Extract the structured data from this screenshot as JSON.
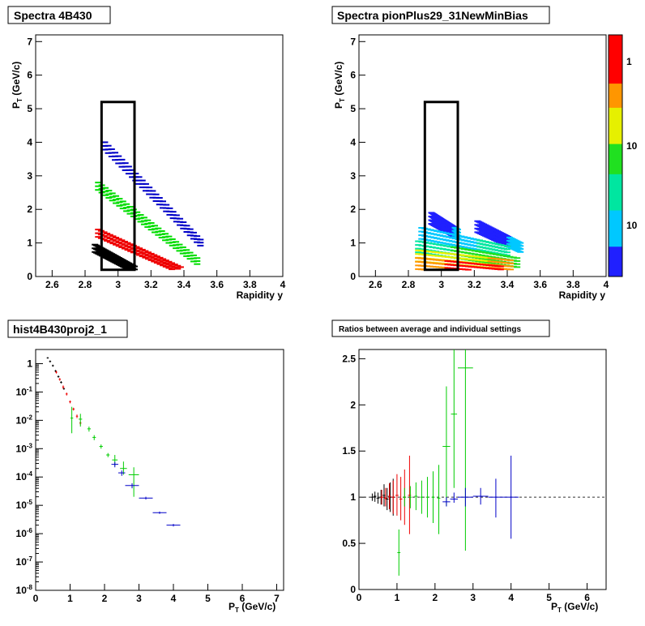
{
  "chart_data": [
    {
      "panel": "top-left",
      "type": "scatter",
      "title": "Spectra 4B430",
      "xlabel": "Rapidity y",
      "ylabel": "P_T (GeV/c)",
      "xlim": [
        2.5,
        4.0
      ],
      "ylim": [
        0,
        7.2
      ],
      "xticks": [
        "2.6",
        "2.8",
        "3",
        "3.2",
        "3.4",
        "3.6",
        "3.8",
        "4"
      ],
      "yticks": [
        "0",
        "1",
        "2",
        "3",
        "4",
        "5",
        "6",
        "7"
      ],
      "acceptance_box": {
        "y_range": [
          2.9,
          3.1
        ],
        "pt_range": [
          0.2,
          5.2
        ]
      },
      "bands": [
        {
          "color": "#0000c8",
          "y_start": 2.92,
          "y_end": 3.5,
          "pt_start": 4.0,
          "pt_end": 1.1
        },
        {
          "color": "#00dd00",
          "y_start": 2.88,
          "y_end": 3.48,
          "pt_start": 2.8,
          "pt_end": 0.55
        },
        {
          "color": "#ee0000",
          "y_start": 2.88,
          "y_end": 3.38,
          "pt_start": 1.4,
          "pt_end": 0.28
        },
        {
          "color": "#000000",
          "y_start": 2.86,
          "y_end": 3.1,
          "pt_start": 0.95,
          "pt_end": 0.3
        }
      ]
    },
    {
      "panel": "top-right",
      "type": "heatmap",
      "title": "Spectra pionPlus29_31NewMinBias",
      "xlabel": "Rapidity y",
      "ylabel": "P_T (GeV/c)",
      "xlim": [
        2.5,
        4.0
      ],
      "ylim": [
        0,
        7.2
      ],
      "xticks": [
        "2.6",
        "2.8",
        "3",
        "3.2",
        "3.4",
        "3.6",
        "3.8",
        "4"
      ],
      "yticks": [
        "0",
        "1",
        "2",
        "3",
        "4",
        "5",
        "6",
        "7"
      ],
      "acceptance_box": {
        "y_range": [
          2.9,
          3.1
        ],
        "pt_range": [
          0.2,
          5.2
        ]
      },
      "colorbar_labels": [
        "1",
        "10",
        "10"
      ],
      "bands": [
        {
          "level": 0.05,
          "y_start": 2.94,
          "y_end": 3.1,
          "pt_start": 1.9,
          "pt_end": 1.4
        },
        {
          "level": 0.08,
          "y_start": 3.22,
          "y_end": 3.48,
          "pt_start": 1.65,
          "pt_end": 1.0
        },
        {
          "level": 0.25,
          "y_start": 2.88,
          "y_end": 3.4,
          "pt_start": 1.45,
          "pt_end": 0.9
        },
        {
          "level": 0.45,
          "y_start": 2.86,
          "y_end": 3.46,
          "pt_start": 1.05,
          "pt_end": 0.55
        },
        {
          "level": 0.65,
          "y_start": 2.86,
          "y_end": 3.42,
          "pt_start": 0.78,
          "pt_end": 0.48
        },
        {
          "level": 0.85,
          "y_start": 2.86,
          "y_end": 3.36,
          "pt_start": 0.55,
          "pt_end": 0.3
        }
      ]
    },
    {
      "panel": "bottom-left",
      "type": "scatter",
      "title": "hist4B430proj2_1",
      "xlabel": "P_T (GeV/c)",
      "ylabel": "",
      "xlim": [
        0,
        7.2
      ],
      "ylim_log10": [
        -8,
        0.5
      ],
      "xticks": [
        "0",
        "1",
        "2",
        "3",
        "4",
        "5",
        "6",
        "7"
      ],
      "yticks": [
        {
          "base": "10",
          "exp": "-8"
        },
        {
          "base": "10",
          "exp": "-7"
        },
        {
          "base": "10",
          "exp": "-6"
        },
        {
          "base": "10",
          "exp": "-5"
        },
        {
          "base": "10",
          "exp": "-4"
        },
        {
          "base": "10",
          "exp": "-3"
        },
        {
          "base": "10",
          "exp": "-2"
        },
        {
          "base": "10",
          "exp": "-1"
        },
        {
          "base": "1",
          "exp": ""
        }
      ],
      "series": [
        {
          "color": "#000000",
          "points": [
            {
              "x": 0.35,
              "y": 1.6,
              "ex": 0.03,
              "lo": 1.5,
              "hi": 1.7
            },
            {
              "x": 0.42,
              "y": 1.2,
              "ex": 0.03,
              "lo": 1.1,
              "hi": 1.3
            },
            {
              "x": 0.5,
              "y": 0.85,
              "ex": 0.03,
              "lo": 0.78,
              "hi": 0.92
            },
            {
              "x": 0.58,
              "y": 0.55,
              "ex": 0.03,
              "lo": 0.5,
              "hi": 0.6
            },
            {
              "x": 0.66,
              "y": 0.35,
              "ex": 0.03,
              "lo": 0.32,
              "hi": 0.38
            },
            {
              "x": 0.74,
              "y": 0.22,
              "ex": 0.03,
              "lo": 0.2,
              "hi": 0.24
            },
            {
              "x": 0.82,
              "y": 0.13,
              "ex": 0.03,
              "lo": 0.12,
              "hi": 0.14
            }
          ]
        },
        {
          "color": "#ee0000",
          "points": [
            {
              "x": 0.6,
              "y": 0.5,
              "ex": 0.03,
              "lo": 0.45,
              "hi": 0.55
            },
            {
              "x": 0.7,
              "y": 0.28,
              "ex": 0.03,
              "lo": 0.25,
              "hi": 0.31
            },
            {
              "x": 0.8,
              "y": 0.15,
              "ex": 0.03,
              "lo": 0.13,
              "hi": 0.17
            },
            {
              "x": 0.9,
              "y": 0.085,
              "ex": 0.03,
              "lo": 0.075,
              "hi": 0.095
            },
            {
              "x": 1.0,
              "y": 0.045,
              "ex": 0.03,
              "lo": 0.04,
              "hi": 0.05
            },
            {
              "x": 1.1,
              "y": 0.025,
              "ex": 0.03,
              "lo": 0.022,
              "hi": 0.028
            },
            {
              "x": 1.2,
              "y": 0.014,
              "ex": 0.03,
              "lo": 0.012,
              "hi": 0.016
            },
            {
              "x": 1.3,
              "y": 0.008,
              "ex": 0.03,
              "lo": 0.007,
              "hi": 0.009
            }
          ]
        },
        {
          "color": "#00cc00",
          "points": [
            {
              "x": 1.05,
              "y": 0.012,
              "ex": 0.04,
              "lo": 0.0035,
              "hi": 0.03
            },
            {
              "x": 1.3,
              "y": 0.011,
              "ex": 0.05,
              "lo": 0.006,
              "hi": 0.017
            },
            {
              "x": 1.55,
              "y": 0.005,
              "ex": 0.05,
              "lo": 0.004,
              "hi": 0.006
            },
            {
              "x": 1.7,
              "y": 0.0025,
              "ex": 0.05,
              "lo": 0.002,
              "hi": 0.003
            },
            {
              "x": 1.9,
              "y": 0.0012,
              "ex": 0.05,
              "lo": 0.001,
              "hi": 0.0014
            },
            {
              "x": 2.1,
              "y": 0.0006,
              "ex": 0.05,
              "lo": 0.0005,
              "hi": 0.0007
            },
            {
              "x": 2.3,
              "y": 0.0004,
              "ex": 0.08,
              "lo": 0.00025,
              "hi": 0.0006
            },
            {
              "x": 2.55,
              "y": 0.0002,
              "ex": 0.1,
              "lo": 0.00012,
              "hi": 0.00035
            },
            {
              "x": 2.85,
              "y": 0.00012,
              "ex": 0.15,
              "lo": 2e-05,
              "hi": 0.00022
            }
          ]
        },
        {
          "color": "#0000c8",
          "points": [
            {
              "x": 2.3,
              "y": 0.00028,
              "ex": 0.1,
              "lo": 0.00022,
              "hi": 0.00034
            },
            {
              "x": 2.5,
              "y": 0.00014,
              "ex": 0.1,
              "lo": 0.00011,
              "hi": 0.00017
            },
            {
              "x": 2.8,
              "y": 5e-05,
              "ex": 0.2,
              "lo": 4e-05,
              "hi": 6e-05
            },
            {
              "x": 3.2,
              "y": 1.8e-05,
              "ex": 0.2,
              "lo": 1.6e-05,
              "hi": 2e-05
            },
            {
              "x": 3.6,
              "y": 5.5e-06,
              "ex": 0.2,
              "lo": 5e-06,
              "hi": 6e-06
            },
            {
              "x": 4.0,
              "y": 2e-06,
              "ex": 0.2,
              "lo": 1.8e-06,
              "hi": 2.2e-06
            }
          ]
        }
      ]
    },
    {
      "panel": "bottom-right",
      "type": "scatter",
      "title": "Ratios between average and individual settings",
      "xlabel": "P_T (GeV/c)",
      "ylabel": "",
      "xlim": [
        0,
        6.5
      ],
      "ylim": [
        0,
        2.6
      ],
      "xticks": [
        "0",
        "1",
        "2",
        "3",
        "4",
        "5",
        "6"
      ],
      "yticks": [
        "0",
        "0.5",
        "1",
        "1.5",
        "2",
        "2.5"
      ],
      "reference_line": 1.0,
      "series": [
        {
          "color": "#000000",
          "points": [
            {
              "x": 0.35,
              "y": 1.0,
              "ex": 0.04,
              "lo": 0.96,
              "hi": 1.04
            },
            {
              "x": 0.42,
              "y": 1.01,
              "ex": 0.04,
              "lo": 0.95,
              "hi": 1.06
            },
            {
              "x": 0.5,
              "y": 0.99,
              "ex": 0.04,
              "lo": 0.93,
              "hi": 1.05
            },
            {
              "x": 0.58,
              "y": 1.0,
              "ex": 0.04,
              "lo": 0.92,
              "hi": 1.08
            },
            {
              "x": 0.66,
              "y": 1.02,
              "ex": 0.04,
              "lo": 0.9,
              "hi": 1.14
            },
            {
              "x": 0.74,
              "y": 0.98,
              "ex": 0.04,
              "lo": 0.86,
              "hi": 1.1
            },
            {
              "x": 0.82,
              "y": 1.0,
              "ex": 0.04,
              "lo": 0.84,
              "hi": 1.16
            },
            {
              "x": 0.9,
              "y": 1.0,
              "ex": 0.04,
              "lo": 0.8,
              "hi": 1.2
            }
          ]
        },
        {
          "color": "#ee0000",
          "points": [
            {
              "x": 0.6,
              "y": 1.0,
              "ex": 0.04,
              "lo": 0.92,
              "hi": 1.08
            },
            {
              "x": 0.7,
              "y": 0.99,
              "ex": 0.04,
              "lo": 0.9,
              "hi": 1.1
            },
            {
              "x": 0.8,
              "y": 1.01,
              "ex": 0.04,
              "lo": 0.87,
              "hi": 1.15
            },
            {
              "x": 0.9,
              "y": 1.0,
              "ex": 0.04,
              "lo": 0.82,
              "hi": 1.18
            },
            {
              "x": 1.0,
              "y": 1.02,
              "ex": 0.04,
              "lo": 0.8,
              "hi": 1.25
            },
            {
              "x": 1.1,
              "y": 0.98,
              "ex": 0.04,
              "lo": 0.75,
              "hi": 1.22
            },
            {
              "x": 1.2,
              "y": 1.0,
              "ex": 0.04,
              "lo": 0.7,
              "hi": 1.3
            },
            {
              "x": 1.33,
              "y": 1.02,
              "ex": 0.04,
              "lo": 0.6,
              "hi": 1.45
            }
          ]
        },
        {
          "color": "#00cc00",
          "points": [
            {
              "x": 1.05,
              "y": 0.4,
              "ex": 0.04,
              "lo": 0.15,
              "hi": 0.65
            },
            {
              "x": 1.2,
              "y": 1.0,
              "ex": 0.04,
              "lo": 0.9,
              "hi": 1.1
            },
            {
              "x": 1.35,
              "y": 1.0,
              "ex": 0.04,
              "lo": 0.88,
              "hi": 1.12
            },
            {
              "x": 1.5,
              "y": 1.01,
              "ex": 0.04,
              "lo": 0.86,
              "hi": 1.16
            },
            {
              "x": 1.65,
              "y": 1.0,
              "ex": 0.04,
              "lo": 0.82,
              "hi": 1.18
            },
            {
              "x": 1.8,
              "y": 1.0,
              "ex": 0.04,
              "lo": 0.78,
              "hi": 1.22
            },
            {
              "x": 1.95,
              "y": 1.0,
              "ex": 0.04,
              "lo": 0.72,
              "hi": 1.28
            },
            {
              "x": 2.1,
              "y": 0.99,
              "ex": 0.04,
              "lo": 0.6,
              "hi": 1.35
            },
            {
              "x": 2.3,
              "y": 1.55,
              "ex": 0.1,
              "lo": 0.9,
              "hi": 2.2
            },
            {
              "x": 2.5,
              "y": 1.9,
              "ex": 0.08,
              "lo": 1.1,
              "hi": 2.6
            },
            {
              "x": 2.8,
              "y": 2.4,
              "ex": 0.2,
              "lo": 0.42,
              "hi": 2.6
            }
          ]
        },
        {
          "color": "#0000c8",
          "points": [
            {
              "x": 2.3,
              "y": 0.95,
              "ex": 0.1,
              "lo": 0.9,
              "hi": 1.0
            },
            {
              "x": 2.5,
              "y": 0.98,
              "ex": 0.1,
              "lo": 0.94,
              "hi": 1.05
            },
            {
              "x": 2.8,
              "y": 1.0,
              "ex": 0.2,
              "lo": 0.9,
              "hi": 1.1
            },
            {
              "x": 3.2,
              "y": 1.01,
              "ex": 0.2,
              "lo": 0.92,
              "hi": 1.1
            },
            {
              "x": 3.6,
              "y": 1.0,
              "ex": 0.2,
              "lo": 0.78,
              "hi": 1.2
            },
            {
              "x": 4.0,
              "y": 1.0,
              "ex": 0.2,
              "lo": 0.55,
              "hi": 1.45
            }
          ]
        }
      ]
    }
  ]
}
